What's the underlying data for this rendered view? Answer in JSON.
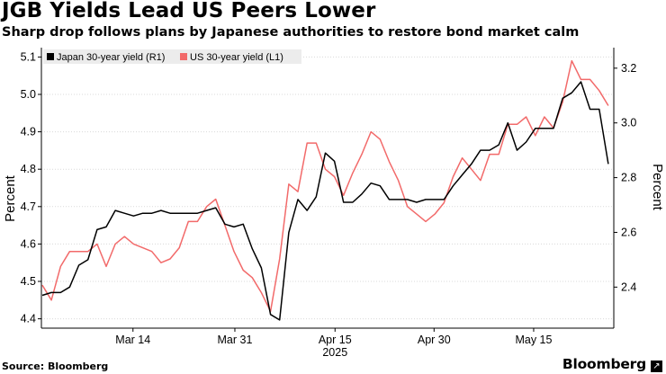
{
  "chart_data": {
    "type": "line",
    "title": "JGB Yields Lead US Peers Lower",
    "subtitle": "Sharp drop follows plans by Japanese authorities to restore bond market calm",
    "source": "Source: Bloomberg",
    "brand": "Bloomberg",
    "brand_mark": "↗",
    "x_ticks": [
      "Mar 14",
      "Mar 31",
      "Apr 15",
      "Apr 30",
      "May 15"
    ],
    "x_year_label": "2025",
    "left_axis": {
      "label": "Percent",
      "ticks": [
        "4.4",
        "4.5",
        "4.6",
        "4.7",
        "4.8",
        "4.9",
        "5.0",
        "5.1"
      ],
      "range": [
        4.375,
        5.125
      ]
    },
    "right_axis": {
      "label": "Percent",
      "ticks": [
        "2.4",
        "2.6",
        "2.8",
        "3.0",
        "3.2"
      ],
      "range": [
        2.25,
        3.275
      ]
    },
    "legend_placement": "top-left",
    "series": [
      {
        "name": "Japan 30-year yield (R1)",
        "axis": "right",
        "color": "#000000",
        "values": [
          2.37,
          2.38,
          2.38,
          2.4,
          2.48,
          2.5,
          2.61,
          2.62,
          2.68,
          2.67,
          2.66,
          2.67,
          2.67,
          2.68,
          2.67,
          2.67,
          2.67,
          2.67,
          2.68,
          2.69,
          2.63,
          2.62,
          2.63,
          2.54,
          2.47,
          2.3,
          2.28,
          2.6,
          2.72,
          2.68,
          2.73,
          2.89,
          2.86,
          2.71,
          2.71,
          2.74,
          2.78,
          2.77,
          2.72,
          2.72,
          2.72,
          2.71,
          2.72,
          2.72,
          2.72,
          2.77,
          2.81,
          2.85,
          2.9,
          2.9,
          2.92,
          3.0,
          2.9,
          2.93,
          2.98,
          2.98,
          2.98,
          3.09,
          3.11,
          3.15,
          3.05,
          3.05,
          2.85
        ]
      },
      {
        "name": "US 30-year yield  (L1)",
        "axis": "left",
        "color": "#f26a6a",
        "values": [
          4.49,
          4.45,
          4.54,
          4.58,
          4.58,
          4.58,
          4.6,
          4.54,
          4.6,
          4.62,
          4.6,
          4.59,
          4.58,
          4.55,
          4.56,
          4.59,
          4.66,
          4.66,
          4.7,
          4.72,
          4.65,
          4.58,
          4.53,
          4.51,
          4.47,
          4.42,
          4.56,
          4.76,
          4.74,
          4.87,
          4.87,
          4.8,
          4.78,
          4.73,
          4.79,
          4.84,
          4.9,
          4.88,
          4.82,
          4.77,
          4.7,
          4.68,
          4.66,
          4.68,
          4.71,
          4.78,
          4.83,
          4.8,
          4.77,
          4.84,
          4.84,
          4.92,
          4.92,
          4.94,
          4.89,
          4.94,
          4.91,
          4.98,
          5.09,
          5.04,
          5.04,
          5.01,
          4.97
        ]
      }
    ]
  }
}
